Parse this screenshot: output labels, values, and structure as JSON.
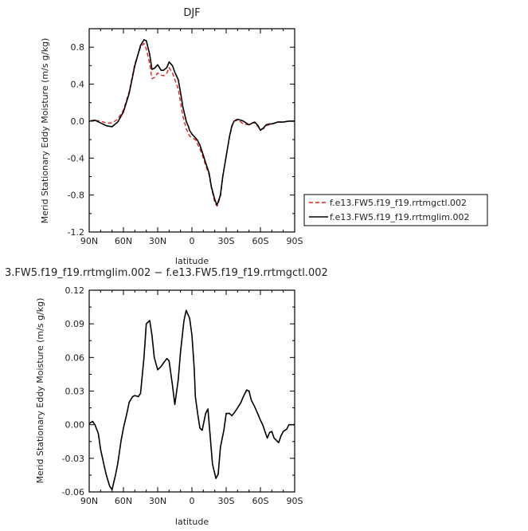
{
  "chart_data": [
    {
      "type": "line",
      "title": "DJF",
      "xlabel": "latitude",
      "ylabel": "Merid Stationary Eddy Moisture (m/s g/kg)",
      "xlim": [
        90,
        -90
      ],
      "ylim": [
        -1.2,
        1.0
      ],
      "xticks": [
        {
          "value": 90,
          "label": "90N"
        },
        {
          "value": 60,
          "label": "60N"
        },
        {
          "value": 30,
          "label": "30N"
        },
        {
          "value": 0,
          "label": "0"
        },
        {
          "value": -30,
          "label": "30S"
        },
        {
          "value": -60,
          "label": "60S"
        },
        {
          "value": -90,
          "label": "90S"
        }
      ],
      "yticks": [
        {
          "value": 0.8,
          "label": "0.8"
        },
        {
          "value": 0.4,
          "label": "0.4"
        },
        {
          "value": 0.0,
          "label": "0.0"
        },
        {
          "value": -0.4,
          "label": "-0.4"
        },
        {
          "value": -0.8,
          "label": "-0.8"
        },
        {
          "value": -1.2,
          "label": "-1.2"
        }
      ],
      "grid": false,
      "legend_position": "outside-right",
      "series": [
        {
          "name": "f.e13.FW5.f19_f19.rrtmgctl.002",
          "color": "#e02020",
          "dash": "dashed",
          "x": [
            90,
            85,
            80,
            75,
            70,
            65,
            60,
            55,
            50,
            45,
            42,
            40,
            37,
            35,
            33,
            30,
            27,
            25,
            22,
            20,
            17,
            15,
            12,
            10,
            8,
            5,
            3,
            2,
            0,
            -3,
            -5,
            -7,
            -10,
            -12,
            -15,
            -17,
            -20,
            -22,
            -25,
            -27,
            -30,
            -33,
            -35,
            -37,
            -40,
            -43,
            -45,
            -50,
            -53,
            -55,
            -58,
            -60,
            -63,
            -65,
            -68,
            -70,
            -73,
            -75,
            -80,
            -85,
            -90
          ],
          "y": [
            0.0,
            0.01,
            0.0,
            -0.02,
            -0.02,
            0.02,
            0.12,
            0.32,
            0.62,
            0.8,
            0.84,
            0.78,
            0.62,
            0.46,
            0.47,
            0.52,
            0.5,
            0.49,
            0.52,
            0.58,
            0.52,
            0.45,
            0.35,
            0.2,
            0.06,
            -0.08,
            -0.14,
            -0.16,
            -0.18,
            -0.2,
            -0.25,
            -0.3,
            -0.4,
            -0.48,
            -0.58,
            -0.72,
            -0.88,
            -0.92,
            -0.82,
            -0.6,
            -0.38,
            -0.17,
            -0.06,
            0.0,
            0.01,
            -0.01,
            -0.03,
            -0.04,
            -0.02,
            -0.02,
            -0.06,
            -0.09,
            -0.08,
            -0.05,
            -0.04,
            -0.03,
            -0.02,
            -0.01,
            -0.01,
            0.0,
            0.0
          ]
        },
        {
          "name": "f.e13.FW5.f19_f19.rrtmglim.002",
          "color": "#000000",
          "dash": "solid",
          "x": [
            90,
            85,
            80,
            75,
            70,
            65,
            60,
            55,
            50,
            45,
            42,
            40,
            37,
            35,
            33,
            30,
            27,
            25,
            22,
            20,
            17,
            15,
            12,
            10,
            8,
            5,
            3,
            2,
            0,
            -3,
            -5,
            -7,
            -10,
            -12,
            -15,
            -17,
            -20,
            -22,
            -25,
            -27,
            -30,
            -33,
            -35,
            -37,
            -40,
            -43,
            -45,
            -50,
            -53,
            -55,
            -58,
            -60,
            -63,
            -65,
            -68,
            -70,
            -73,
            -75,
            -80,
            -85,
            -90
          ],
          "y": [
            0.0,
            0.01,
            -0.02,
            -0.05,
            -0.06,
            -0.01,
            0.1,
            0.3,
            0.6,
            0.82,
            0.88,
            0.87,
            0.72,
            0.56,
            0.57,
            0.61,
            0.55,
            0.55,
            0.58,
            0.64,
            0.6,
            0.53,
            0.45,
            0.31,
            0.16,
            0.0,
            -0.06,
            -0.1,
            -0.14,
            -0.18,
            -0.21,
            -0.26,
            -0.37,
            -0.45,
            -0.56,
            -0.71,
            -0.85,
            -0.91,
            -0.8,
            -0.6,
            -0.38,
            -0.16,
            -0.05,
            0.0,
            0.02,
            0.01,
            0.0,
            -0.04,
            -0.02,
            -0.01,
            -0.05,
            -0.1,
            -0.07,
            -0.04,
            -0.03,
            -0.03,
            -0.02,
            -0.01,
            -0.01,
            0.0,
            0.0
          ]
        }
      ]
    },
    {
      "type": "line",
      "title": "3.FW5.f19_f19.rrtmglim.002 − f.e13.FW5.f19_f19.rrtmgctl.002",
      "xlabel": "latitude",
      "ylabel": "Merid Stationary Eddy Moisture (m/s g/kg)",
      "xlim": [
        90,
        -90
      ],
      "ylim": [
        -0.06,
        0.12
      ],
      "xticks": [
        {
          "value": 90,
          "label": "90N"
        },
        {
          "value": 60,
          "label": "60N"
        },
        {
          "value": 30,
          "label": "30N"
        },
        {
          "value": 0,
          "label": "0"
        },
        {
          "value": -30,
          "label": "30S"
        },
        {
          "value": -60,
          "label": "60S"
        },
        {
          "value": -90,
          "label": "90S"
        }
      ],
      "yticks": [
        {
          "value": 0.12,
          "label": "0.12"
        },
        {
          "value": 0.09,
          "label": "0.09"
        },
        {
          "value": 0.06,
          "label": "0.06"
        },
        {
          "value": 0.03,
          "label": "0.03"
        },
        {
          "value": 0.0,
          "label": "0.00"
        },
        {
          "value": -0.03,
          "label": "-0.03"
        },
        {
          "value": -0.06,
          "label": "-0.06"
        }
      ],
      "grid": false,
      "series": [
        {
          "color": "#000000",
          "dash": "solid",
          "x": [
            90,
            87,
            85,
            82,
            80,
            77,
            75,
            72,
            70,
            67,
            65,
            62,
            60,
            57,
            55,
            52,
            50,
            47,
            45,
            42,
            40,
            37,
            35,
            33,
            30,
            27,
            25,
            22,
            20,
            17,
            15,
            12,
            10,
            7,
            5,
            2,
            0,
            -2,
            -3,
            -5,
            -7,
            -9,
            -12,
            -14,
            -16,
            -18,
            -21,
            -23,
            -25,
            -28,
            -30,
            -33,
            -35,
            -38,
            -40,
            -43,
            -45,
            -48,
            -50,
            -52,
            -55,
            -58,
            -60,
            -62,
            -64,
            -66,
            -68,
            -70,
            -72,
            -74,
            -76,
            -78,
            -80,
            -83,
            -85,
            -87,
            -90
          ],
          "y": [
            0.001,
            0.003,
            0.0,
            -0.008,
            -0.022,
            -0.036,
            -0.045,
            -0.055,
            -0.058,
            -0.045,
            -0.035,
            -0.014,
            -0.003,
            0.01,
            0.02,
            0.025,
            0.026,
            0.025,
            0.028,
            0.06,
            0.09,
            0.093,
            0.08,
            0.06,
            0.049,
            0.052,
            0.055,
            0.059,
            0.057,
            0.035,
            0.018,
            0.04,
            0.065,
            0.093,
            0.102,
            0.095,
            0.08,
            0.05,
            0.025,
            0.01,
            -0.003,
            -0.005,
            0.01,
            0.014,
            -0.01,
            -0.035,
            -0.048,
            -0.044,
            -0.02,
            -0.005,
            0.01,
            0.01,
            0.008,
            0.012,
            0.015,
            0.02,
            0.025,
            0.031,
            0.03,
            0.022,
            0.016,
            0.009,
            0.004,
            0.0,
            -0.006,
            -0.012,
            -0.007,
            -0.006,
            -0.012,
            -0.014,
            -0.016,
            -0.01,
            -0.006,
            -0.004,
            0.0,
            0.0,
            0.0
          ]
        }
      ]
    }
  ]
}
